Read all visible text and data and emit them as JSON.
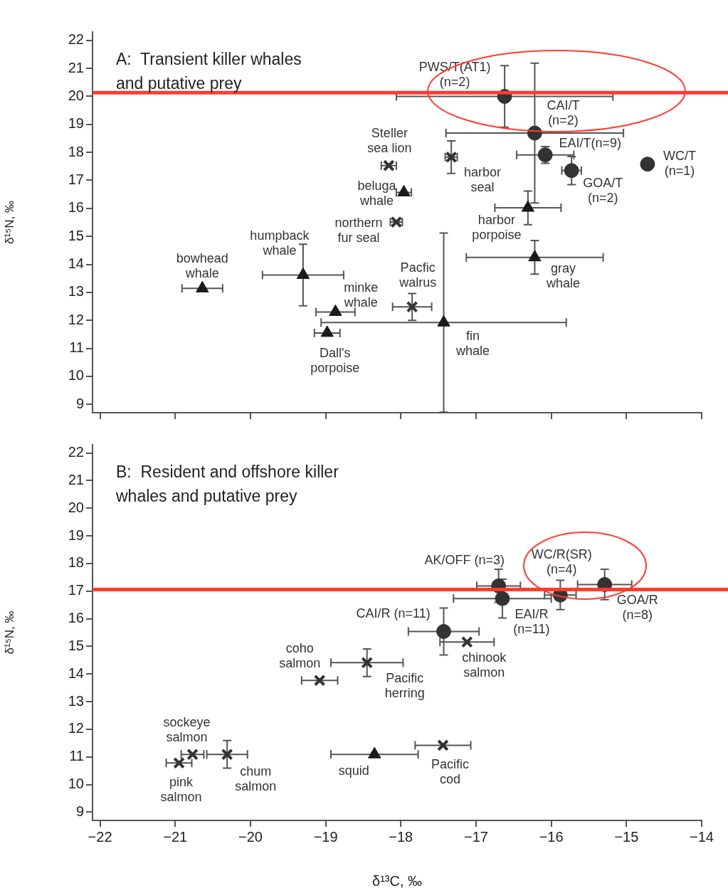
{
  "chart_data": [
    {
      "type": "scatter",
      "title": "A:  Transient killer whales\nand putative prey",
      "ylabel": "δ¹⁵N, ‰",
      "xlim": [
        -22.1,
        -14
      ],
      "ylim": [
        8.7,
        22.3
      ],
      "xticks": [
        {
          "value": -22,
          "label": null
        },
        {
          "value": -21,
          "label": null
        },
        {
          "value": -20,
          "label": null
        },
        {
          "value": -19,
          "label": null
        },
        {
          "value": -18,
          "label": null
        },
        {
          "value": -17,
          "label": null
        },
        {
          "value": -16,
          "label": null
        },
        {
          "value": -15,
          "label": null
        },
        {
          "value": -14,
          "label": null
        }
      ],
      "yticks": [
        9,
        10,
        11,
        12,
        13,
        14,
        15,
        16,
        17,
        18,
        19,
        20,
        21,
        22
      ],
      "tick_labels": "y",
      "series": [
        {
          "color": "#333333",
          "marker": "circle",
          "x": [
            -16.62,
            -16.22,
            -16.08,
            -15.73,
            -14.72
          ],
          "values": [
            20.0,
            18.69,
            17.91,
            17.35,
            17.58
          ],
          "errors": [
            1.1,
            2.5,
            0.3,
            0.5,
            null
          ],
          "xerrors": [
            1.44,
            1.18,
            0.38,
            0.13,
            null
          ]
        },
        {
          "color": "#1a1a1a",
          "marker": "triangle",
          "x": [
            -17.96,
            -16.31,
            -16.22,
            -17.43,
            -19.3,
            -20.64,
            -18.87,
            -18.98
          ],
          "values": [
            16.57,
            16.02,
            14.25,
            11.92,
            13.62,
            13.14,
            12.3,
            11.55
          ],
          "errors": [
            null,
            0.6,
            0.6,
            3.2,
            1.1,
            null,
            null,
            null
          ],
          "xerrors": [
            0.1,
            0.44,
            0.91,
            1.63,
            0.54,
            0.27,
            0.26,
            0.17
          ]
        },
        {
          "color": "#333333",
          "marker": "cross",
          "x": [
            -18.16,
            -17.33,
            -18.06,
            -17.85
          ],
          "values": [
            17.53,
            17.83,
            15.51,
            12.48
          ],
          "errors": [
            null,
            0.58,
            null,
            0.48
          ],
          "xerrors": [
            0.1,
            0.08,
            0.08,
            0.26
          ]
        }
      ],
      "ref_lines": [
        {
          "axis": "y",
          "value": 20.13,
          "color": "#ff3b30"
        }
      ],
      "annotations": [
        {
          "text": "PWS/T(AT1)\n(n=2)",
          "x": -16.62,
          "y": 20.0
        },
        {
          "text": "CAI/T\n(n=2)",
          "x": -16.22,
          "y": 18.69
        },
        {
          "text": "EAI/T(n=9)",
          "x": -16.08,
          "y": 17.91
        },
        {
          "text": "WC/T\n(n=1)",
          "x": -14.72,
          "y": 17.58
        },
        {
          "text": "GOA/T\n(n=2)",
          "x": -15.73,
          "y": 17.35
        },
        {
          "text": "Steller\nsea lion",
          "x": -18.16,
          "y": 17.53
        },
        {
          "text": "harbor\nseal",
          "x": -17.33,
          "y": 17.83
        },
        {
          "text": "beluga\nwhale",
          "x": -17.96,
          "y": 16.57
        },
        {
          "text": "northern\nfur seal",
          "x": -18.06,
          "y": 15.51
        },
        {
          "text": "harbor\nporpoise",
          "x": -16.31,
          "y": 16.02
        },
        {
          "text": "humpback\nwhale",
          "x": -19.3,
          "y": 13.62
        },
        {
          "text": "bowhead\nwhale",
          "x": -20.64,
          "y": 13.14
        },
        {
          "text": "Pacfic\nwalrus",
          "x": -17.85,
          "y": 12.48
        },
        {
          "text": "minke\nwhale",
          "x": -18.87,
          "y": 12.3
        },
        {
          "text": "gray\nwhale",
          "x": -16.22,
          "y": 14.25
        },
        {
          "text": "fin\nwhale",
          "x": -17.43,
          "y": 11.92
        },
        {
          "text": "Dall's\nporpoise",
          "x": -18.98,
          "y": 11.55
        }
      ]
    },
    {
      "type": "scatter",
      "title": "B:  Resident and offshore killer\nwhales and putative prey",
      "xlabel": "δ¹³C, ‰",
      "ylabel": "δ¹⁵N, ‰",
      "xlim": [
        -22.1,
        -14
      ],
      "ylim": [
        8.7,
        22.3
      ],
      "xticks": [
        {
          "value": -22,
          "label": "−22"
        },
        {
          "value": -21,
          "label": "−21"
        },
        {
          "value": -20,
          "label": "−20"
        },
        {
          "value": -19,
          "label": "−19"
        },
        {
          "value": -18,
          "label": "−18"
        },
        {
          "value": -17,
          "label": "−17"
        },
        {
          "value": -16,
          "label": "−16"
        },
        {
          "value": -15,
          "label": "−15"
        },
        {
          "value": -14,
          "label": "−14"
        }
      ],
      "yticks": [
        9,
        10,
        11,
        12,
        13,
        14,
        15,
        16,
        17,
        18,
        19,
        20,
        21,
        22
      ],
      "series": [
        {
          "color": "#333333",
          "marker": "circle",
          "x": [
            -16.7,
            -16.65,
            -15.88,
            -15.29,
            -17.43
          ],
          "values": [
            17.19,
            16.73,
            16.86,
            17.24,
            15.54
          ],
          "errors": [
            0.6,
            0.7,
            0.53,
            0.55,
            0.85
          ],
          "xerrors": [
            0.29,
            0.65,
            0.21,
            0.36,
            0.47
          ]
        },
        {
          "color": "#1a1a1a",
          "marker": "triangle",
          "x": [
            -18.35
          ],
          "values": [
            11.09
          ],
          "errors": [
            null
          ],
          "xerrors": [
            0.58
          ]
        },
        {
          "color": "#333333",
          "marker": "cross",
          "x": [
            -17.12,
            -18.45,
            -19.08,
            -20.77,
            -20.95,
            -20.31,
            -17.44
          ],
          "values": [
            15.16,
            14.41,
            13.77,
            11.09,
            10.78,
            11.09,
            11.42
          ],
          "errors": [
            null,
            0.5,
            null,
            null,
            null,
            0.5,
            null
          ],
          "xerrors": [
            0.36,
            0.48,
            0.24,
            0.15,
            0.17,
            0.27,
            0.37
          ]
        }
      ],
      "ref_lines": [
        {
          "axis": "y",
          "value": 17.06,
          "color": "#ff3b30"
        }
      ],
      "annotations": [
        {
          "text": "AK/OFF (n=3)",
          "x": -16.7,
          "y": 17.19
        },
        {
          "text": "WC/R(SR)\n(n=4)",
          "x": -15.88,
          "y": 16.86
        },
        {
          "text": "GOA/R\n(n=8)",
          "x": -15.29,
          "y": 17.24
        },
        {
          "text": "EAI/R\n(n=11)",
          "x": -16.65,
          "y": 16.73
        },
        {
          "text": "CAI/R (n=11)",
          "x": -17.43,
          "y": 15.54
        },
        {
          "text": "coho\nsalmon",
          "x": -19.08,
          "y": 13.77
        },
        {
          "text": "Pacific\nherring",
          "x": -18.45,
          "y": 14.41
        },
        {
          "text": "chinook\nsalmon",
          "x": -17.12,
          "y": 15.16
        },
        {
          "text": "sockeye\nsalmon",
          "x": -20.77,
          "y": 11.09
        },
        {
          "text": "pink\nsalmon",
          "x": -20.95,
          "y": 10.78
        },
        {
          "text": "chum\nsalmon",
          "x": -20.31,
          "y": 11.09
        },
        {
          "text": "squid",
          "x": -18.35,
          "y": 11.09
        },
        {
          "text": "Pacific\ncod",
          "x": -17.44,
          "y": 11.42
        }
      ]
    }
  ]
}
